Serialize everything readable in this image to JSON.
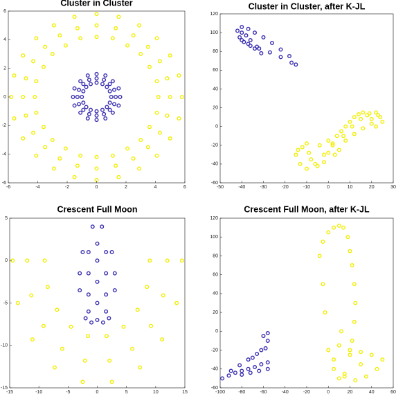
{
  "chart_data": [
    {
      "type": "scatter",
      "title": "Cluster in Cluster",
      "xlim": [
        -6,
        6
      ],
      "ylim": [
        -6,
        6
      ],
      "xticks": [
        -6,
        -4,
        -2,
        0,
        2,
        4,
        6
      ],
      "yticks": [
        -6,
        -4,
        -2,
        0,
        2,
        4,
        6
      ],
      "series": [
        {
          "color": "#f2ee00",
          "x": [
            4.2,
            4.1,
            3.6,
            3.0,
            2.1,
            1.1,
            0,
            -1.1,
            -2.1,
            -3.0,
            -3.6,
            -4.1,
            -4.2,
            -4.1,
            -3.6,
            -3.0,
            -2.1,
            -1.1,
            0,
            1.1,
            2.1,
            3.0,
            3.6,
            4.1,
            5.0,
            4.8,
            4.3,
            3.5,
            2.5,
            1.3,
            0,
            -1.3,
            -2.5,
            -3.5,
            -4.3,
            -4.8,
            -5.0,
            -4.8,
            -4.3,
            -3.5,
            -2.5,
            -1.3,
            0,
            1.3,
            2.5,
            3.5,
            4.3,
            4.8,
            5.8,
            5.6,
            5.0,
            4.1,
            2.9,
            1.5,
            0,
            -1.5,
            -2.9,
            -4.1,
            -5.0,
            -5.6,
            -5.8,
            -5.6,
            -5.0,
            -4.1,
            -2.9,
            -1.5,
            0,
            1.5,
            2.9,
            4.1,
            5.0,
            5.6
          ],
          "values": [
            0,
            1.1,
            2.1,
            3.0,
            3.6,
            4.1,
            4.2,
            4.1,
            3.6,
            3.0,
            2.1,
            1.1,
            0,
            -1.1,
            -2.1,
            -3.0,
            -3.6,
            -4.1,
            -4.2,
            -4.1,
            -3.6,
            -3.0,
            -2.1,
            -1.1,
            0,
            1.3,
            2.5,
            3.5,
            4.3,
            4.8,
            5.0,
            4.8,
            4.3,
            3.5,
            2.5,
            1.3,
            0,
            -1.3,
            -2.5,
            -3.5,
            -4.3,
            -4.8,
            -5.0,
            -4.8,
            -4.3,
            -3.5,
            -2.5,
            -1.3,
            0,
            1.5,
            2.9,
            4.1,
            5.0,
            5.6,
            5.8,
            5.6,
            5.0,
            4.1,
            2.9,
            1.5,
            0,
            -1.5,
            -2.9,
            -4.1,
            -5.0,
            -5.6,
            -5.8,
            -5.6,
            -5.0,
            -4.1,
            -2.9,
            -1.5
          ]
        },
        {
          "color": "#3a2fb0",
          "x": [
            1.0,
            0.9,
            0.7,
            0.4,
            0,
            -0.4,
            -0.7,
            -0.9,
            -1.0,
            -0.9,
            -0.7,
            -0.4,
            0,
            0.4,
            0.7,
            0.9,
            1.3,
            1.2,
            0.9,
            0.5,
            0,
            -0.5,
            -0.9,
            -1.2,
            -1.3,
            -1.2,
            -0.9,
            -0.5,
            0,
            0.5,
            0.9,
            1.2,
            1.6,
            1.5,
            1.1,
            0.6,
            0,
            -0.6,
            -1.1,
            -1.5,
            -1.6,
            -1.5,
            -1.1,
            -0.6,
            0,
            0.6,
            1.1,
            1.5
          ],
          "values": [
            0,
            0.4,
            0.7,
            0.9,
            1.0,
            0.9,
            0.7,
            0.4,
            0,
            -0.4,
            -0.7,
            -0.9,
            -1.0,
            -0.9,
            -0.7,
            -0.4,
            0,
            0.5,
            0.9,
            1.2,
            1.3,
            1.2,
            0.9,
            0.5,
            0,
            -0.5,
            -0.9,
            -1.2,
            -1.3,
            -1.2,
            -0.9,
            -0.5,
            0,
            0.6,
            1.1,
            1.5,
            1.6,
            1.5,
            1.1,
            0.6,
            0,
            -0.6,
            -1.1,
            -1.5,
            -1.6,
            -1.5,
            -1.1,
            -0.6
          ]
        }
      ]
    },
    {
      "type": "scatter",
      "title": "Cluster in Cluster, after K-JL",
      "xlim": [
        -50,
        30
      ],
      "ylim": [
        -60,
        120
      ],
      "xticks": [
        -50,
        -40,
        -30,
        -20,
        -10,
        0,
        10,
        20,
        30
      ],
      "yticks": [
        -60,
        -40,
        -20,
        0,
        20,
        40,
        60,
        80,
        100,
        120
      ],
      "series": [
        {
          "color": "#3a2fb0",
          "x": [
            -42,
            -40,
            -37,
            -34,
            -30,
            -26,
            -22,
            -18,
            -15,
            -17,
            -22,
            -27,
            -32,
            -36,
            -39,
            -41,
            -40,
            -37,
            -34,
            -31,
            -33,
            -36,
            -38,
            -40
          ],
          "values": [
            102,
            106,
            104,
            100,
            95,
            89,
            82,
            75,
            66,
            68,
            74,
            79,
            83,
            86,
            90,
            95,
            92,
            88,
            83,
            78,
            85,
            92,
            97,
            100
          ]
        },
        {
          "color": "#f2ee00",
          "x": [
            -15,
            -12,
            -10,
            -8,
            -5,
            -2,
            0,
            2,
            4,
            6,
            8,
            10,
            12,
            14,
            16,
            18,
            20,
            22,
            24,
            25,
            -13,
            -10,
            -6,
            -2,
            2,
            5,
            8,
            12,
            16,
            20,
            23,
            -14,
            -9,
            -4,
            0,
            3,
            7,
            11,
            15,
            19,
            22
          ],
          "values": [
            -30,
            -22,
            -18,
            -35,
            -42,
            -38,
            -28,
            -20,
            -10,
            -5,
            0,
            5,
            10,
            13,
            15,
            12,
            8,
            15,
            10,
            5,
            -40,
            -45,
            -40,
            -30,
            -18,
            -25,
            -15,
            -8,
            -2,
            3,
            12,
            -25,
            -28,
            -20,
            -15,
            -30,
            -10,
            0,
            8,
            14,
            0
          ]
        }
      ]
    },
    {
      "type": "scatter",
      "title": "Crescent Full Moon",
      "xlim": [
        -15,
        15
      ],
      "ylim": [
        -15,
        5
      ],
      "xticks": [
        -15,
        -10,
        -5,
        0,
        5,
        10,
        15
      ],
      "yticks": [
        -15,
        -10,
        -5,
        0,
        5
      ],
      "series": [
        {
          "color": "#3a2fb0",
          "x": [
            0,
            0,
            0,
            0,
            0,
            1.5,
            1.5,
            1.5,
            1.5,
            -1.5,
            -1.5,
            -1.5,
            -1.5,
            3,
            3,
            -3,
            -3,
            2.5,
            -2.5,
            0.8,
            -0.8,
            2,
            -2,
            1,
            -1
          ],
          "values": [
            2,
            0,
            -2.5,
            -5,
            -7,
            1,
            -1.5,
            -4,
            -6,
            1,
            -1.5,
            -4,
            -6,
            -1.5,
            -3.5,
            -1.5,
            -3.5,
            1,
            1,
            4,
            4,
            -6.8,
            -6.8,
            -7.3,
            -7.3
          ]
        },
        {
          "color": "#f2ee00",
          "x": [
            9,
            8.5,
            6.9,
            4.5,
            1.6,
            -1.6,
            -4.5,
            -6.9,
            -8.5,
            -9,
            12,
            11.3,
            9.2,
            6,
            2.1,
            -2.1,
            -6,
            -9.2,
            -11.3,
            -12,
            14.5,
            13.6,
            11.1,
            7.3,
            2.5,
            -2.5,
            -7.3,
            -11.1,
            -13.6,
            -14.5
          ],
          "values": [
            0,
            -3.1,
            -5.8,
            -7.8,
            -8.9,
            -8.9,
            -7.8,
            -5.8,
            -3.1,
            0,
            0,
            -4.1,
            -7.7,
            -10.4,
            -11.8,
            -11.8,
            -10.4,
            -7.7,
            -4.1,
            0,
            0,
            -5,
            -9.3,
            -12.6,
            -14.3,
            -14.3,
            -12.6,
            -9.3,
            -5,
            0
          ]
        }
      ]
    },
    {
      "type": "scatter",
      "title": "Crescent Full Moon, after K-JL",
      "xlim": [
        -100,
        60
      ],
      "ylim": [
        -60,
        120
      ],
      "xticks": [
        -100,
        -80,
        -60,
        -40,
        -20,
        0,
        20,
        40,
        60
      ],
      "yticks": [
        -60,
        -40,
        -20,
        0,
        20,
        40,
        60,
        80,
        100,
        120
      ],
      "series": [
        {
          "color": "#3a2fb0",
          "x": [
            -98,
            -92,
            -86,
            -80,
            -74,
            -68,
            -62,
            -56,
            -90,
            -82,
            -74,
            -66,
            -58,
            -80,
            -72,
            -64,
            -56,
            -70,
            -62,
            -56,
            -60,
            -56
          ],
          "values": [
            -50,
            -47,
            -44,
            -42,
            -40,
            -38,
            -35,
            -33,
            -42,
            -36,
            -30,
            -24,
            -18,
            -46,
            -44,
            -42,
            -40,
            -28,
            -20,
            -10,
            -5,
            -2
          ]
        },
        {
          "color": "#f2ee00",
          "x": [
            -8,
            -5,
            0,
            5,
            10,
            14,
            18,
            20,
            22,
            24,
            25,
            24,
            22,
            20,
            15,
            10,
            5,
            0,
            -3,
            -5,
            5,
            15,
            25,
            35,
            45,
            50,
            40,
            30,
            20,
            10,
            12,
            30
          ],
          "values": [
            80,
            95,
            105,
            110,
            112,
            110,
            100,
            85,
            70,
            50,
            30,
            10,
            -10,
            -25,
            -45,
            -50,
            -40,
            -20,
            20,
            50,
            -30,
            -48,
            -52,
            -48,
            -40,
            -30,
            -25,
            -22,
            -20,
            -15,
            0,
            -35
          ]
        }
      ]
    }
  ]
}
